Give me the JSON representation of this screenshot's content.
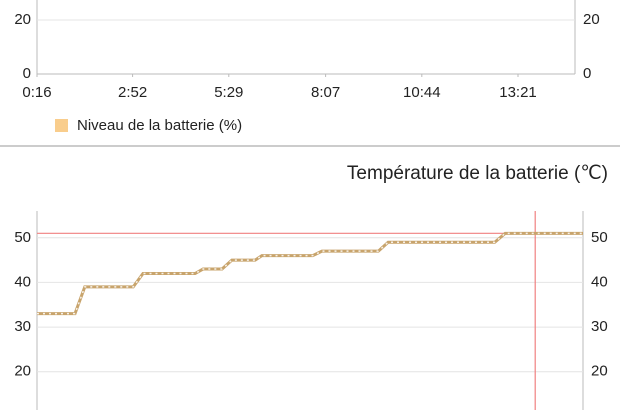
{
  "chart_data": [
    {
      "type": "line",
      "series": [
        {
          "name": "Niveau de la batterie (%)",
          "color": "#f9cd8c"
        }
      ],
      "xlim": [
        16,
        894
      ],
      "xticks": [
        {
          "value": 16,
          "label": "0:16"
        },
        {
          "value": 172,
          "label": "2:52"
        },
        {
          "value": 329,
          "label": "5:29"
        },
        {
          "value": 487,
          "label": "8:07"
        },
        {
          "value": 644,
          "label": "10:44"
        },
        {
          "value": 801,
          "label": "13:21"
        }
      ],
      "ylim": [
        0,
        100
      ],
      "yticks": [
        0,
        20
      ],
      "grid": true
    },
    {
      "type": "line",
      "title": "Température de la batterie (℃)",
      "series": [
        {
          "color": "#c8a46c",
          "x": [
            16,
            78,
            94,
            173,
            189,
            274,
            287,
            318,
            334,
            372,
            383,
            466,
            481,
            573,
            589,
            763,
            780,
            907
          ],
          "values": [
            33,
            33,
            39,
            39,
            42,
            42,
            43,
            43,
            45,
            45,
            46,
            46,
            47,
            47,
            49,
            49,
            51,
            51
          ]
        }
      ],
      "xlim": [
        16,
        907
      ],
      "ylim": [
        0,
        56
      ],
      "yticks": [
        20,
        30,
        40,
        50
      ],
      "grid": true,
      "hline": {
        "value": 51,
        "color": "#f08080"
      },
      "vline": {
        "value": 829,
        "color": "#f08080"
      }
    }
  ]
}
